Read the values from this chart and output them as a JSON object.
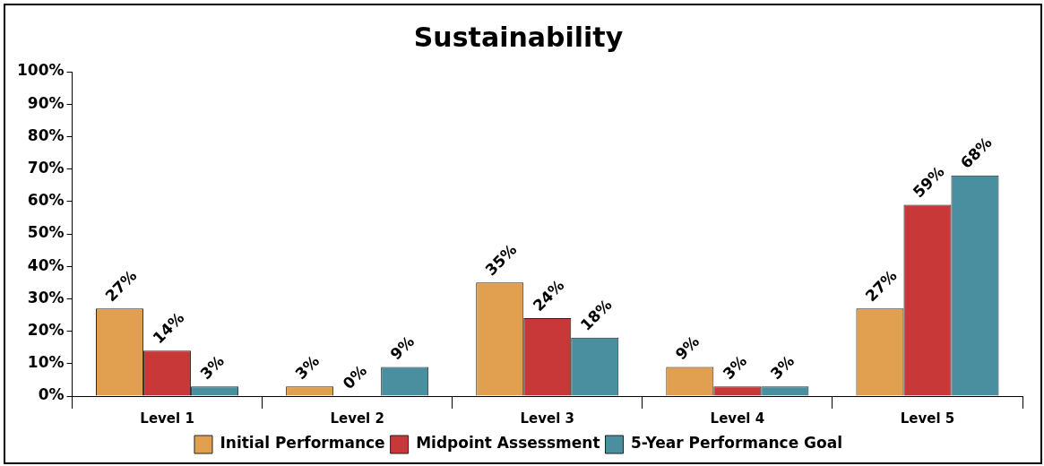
{
  "chart_data": {
    "type": "bar",
    "title": "Sustainability",
    "categories": [
      "Level 1",
      "Level 2",
      "Level 3",
      "Level 4",
      "Level 5"
    ],
    "series": [
      {
        "name": "Initial Performance",
        "color": "#e0a050",
        "values": [
          27,
          3,
          35,
          9,
          27
        ]
      },
      {
        "name": "Midpoint Assessment",
        "color": "#c83838",
        "values": [
          14,
          0,
          24,
          3,
          59
        ]
      },
      {
        "name": "5-Year Performance Goal",
        "color": "#4a8fa0",
        "values": [
          3,
          9,
          18,
          3,
          68
        ]
      }
    ],
    "value_labels": [
      [
        "27%",
        "3%",
        "35%",
        "9%",
        "27%"
      ],
      [
        "14%",
        "0%",
        "24%",
        "3%",
        "59%"
      ],
      [
        "3%",
        "9%",
        "18%",
        "3%",
        "68%"
      ]
    ],
    "ylim": [
      0,
      100
    ],
    "yticks": [
      {
        "value": 0,
        "label": "0%"
      },
      {
        "value": 10,
        "label": "10%"
      },
      {
        "value": 20,
        "label": "20%"
      },
      {
        "value": 30,
        "label": "30%"
      },
      {
        "value": 40,
        "label": "40%"
      },
      {
        "value": 50,
        "label": "50%"
      },
      {
        "value": 60,
        "label": "60%"
      },
      {
        "value": 70,
        "label": "70%"
      },
      {
        "value": 80,
        "label": "80%"
      },
      {
        "value": 90,
        "label": "90%"
      },
      {
        "value": 100,
        "label": "100%"
      }
    ],
    "grid": false,
    "legend": "bottom"
  }
}
